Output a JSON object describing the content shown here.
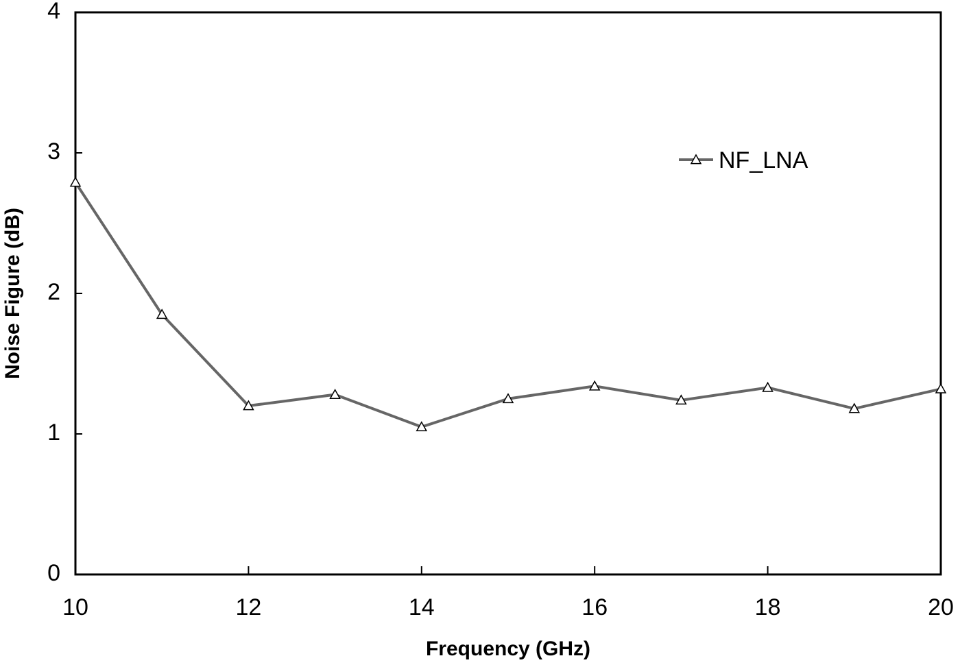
{
  "chart_data": {
    "type": "line",
    "x_label": "Frequency (GHz)",
    "y_label": "Noise Figure (dB)",
    "x": [
      10,
      11,
      12,
      13,
      14,
      15,
      16,
      17,
      18,
      19,
      20
    ],
    "series": [
      {
        "name": "NF_LNA",
        "color": "#666666",
        "values": [
          2.79,
          1.85,
          1.2,
          1.28,
          1.05,
          1.25,
          1.34,
          1.24,
          1.33,
          1.18,
          1.32
        ]
      }
    ],
    "xlim": [
      10,
      20
    ],
    "xticks": [
      10,
      12,
      14,
      16,
      18,
      20
    ],
    "ylim": [
      0,
      4
    ],
    "yticks": [
      0,
      1,
      2,
      3,
      4
    ],
    "legend": "upper right",
    "marker": "triangle"
  }
}
